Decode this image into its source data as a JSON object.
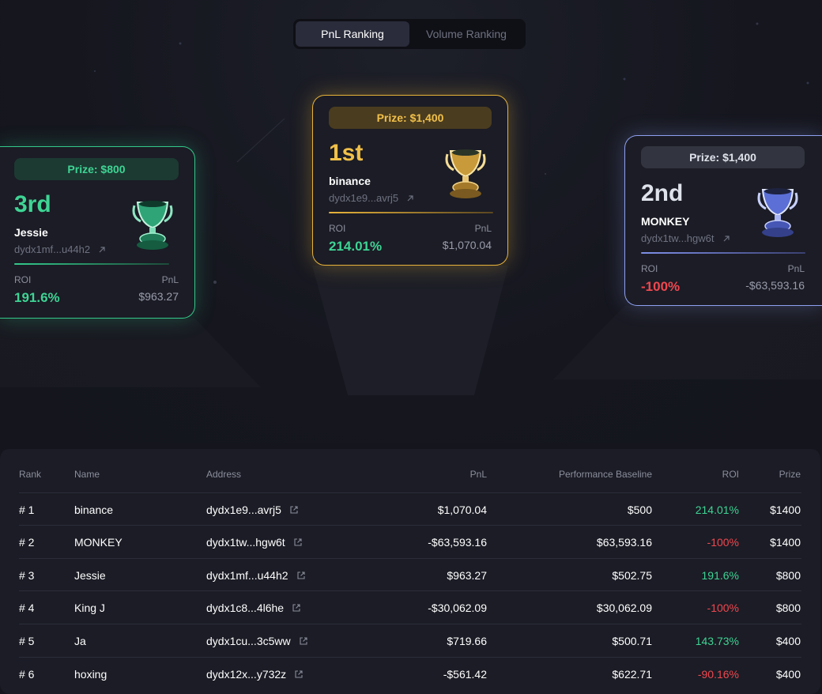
{
  "tabs": [
    {
      "label": "PnL Ranking",
      "active": true
    },
    {
      "label": "Volume Ranking",
      "active": false
    }
  ],
  "podium": {
    "first": {
      "prize": "Prize: $1,400",
      "place": "1st",
      "name": "binance",
      "address": "dydx1e9...avrj5",
      "roi_label": "ROI",
      "pnl_label": "PnL",
      "roi": "214.01%",
      "pnl": "$1,070.04"
    },
    "second": {
      "prize": "Prize: $1,400",
      "place": "2nd",
      "name": "MONKEY",
      "address": "dydx1tw...hgw6t",
      "roi_label": "ROI",
      "pnl_label": "PnL",
      "roi": "-100%",
      "pnl": "-$63,593.16"
    },
    "third": {
      "prize": "Prize: $800",
      "place": "3rd",
      "name": "Jessie",
      "address": "dydx1mf...u44h2",
      "roi_label": "ROI",
      "pnl_label": "PnL",
      "roi": "191.6%",
      "pnl": "$963.27"
    }
  },
  "colors": {
    "gold": "#e8b33a",
    "green": "#3ed494",
    "blue": "#8ea0f0",
    "negative": "#f0474f",
    "background": "#14151d",
    "panel": "#1b1c25"
  },
  "table": {
    "headers": {
      "rank": "Rank",
      "name": "Name",
      "address": "Address",
      "pnl": "PnL",
      "baseline": "Performance Baseline",
      "roi": "ROI",
      "prize": "Prize"
    },
    "rows": [
      {
        "rank": "# 1",
        "name": "binance",
        "address": "dydx1e9...avrj5",
        "pnl": "$1,070.04",
        "baseline": "$500",
        "roi": "214.01%",
        "roi_sign": "pos",
        "prize": "$1400"
      },
      {
        "rank": "# 2",
        "name": "MONKEY",
        "address": "dydx1tw...hgw6t",
        "pnl": "-$63,593.16",
        "baseline": "$63,593.16",
        "roi": "-100%",
        "roi_sign": "neg",
        "prize": "$1400"
      },
      {
        "rank": "# 3",
        "name": "Jessie",
        "address": "dydx1mf...u44h2",
        "pnl": "$963.27",
        "baseline": "$502.75",
        "roi": "191.6%",
        "roi_sign": "pos",
        "prize": "$800"
      },
      {
        "rank": "# 4",
        "name": "King J",
        "address": "dydx1c8...4l6he",
        "pnl": "-$30,062.09",
        "baseline": "$30,062.09",
        "roi": "-100%",
        "roi_sign": "neg",
        "prize": "$800"
      },
      {
        "rank": "# 5",
        "name": "Ja",
        "address": "dydx1cu...3c5ww",
        "pnl": "$719.66",
        "baseline": "$500.71",
        "roi": "143.73%",
        "roi_sign": "pos",
        "prize": "$400"
      },
      {
        "rank": "# 6",
        "name": "hoxing",
        "address": "dydx12x...y732z",
        "pnl": "-$561.42",
        "baseline": "$622.71",
        "roi": "-90.16%",
        "roi_sign": "neg",
        "prize": "$400"
      }
    ]
  }
}
